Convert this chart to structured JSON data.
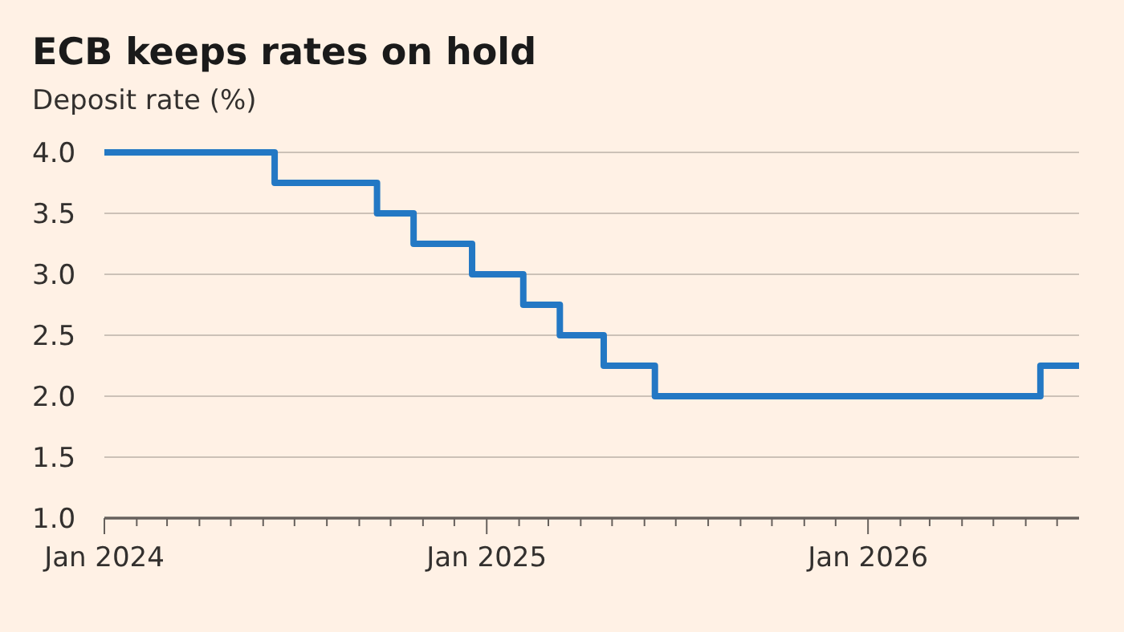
{
  "chart_data": {
    "type": "step",
    "title": "ECB keeps rates on hold",
    "subtitle": "Deposit rate (%)",
    "x": [
      "2024-01-01",
      "2024-06-12",
      "2024-09-18",
      "2024-10-23",
      "2024-12-18",
      "2025-02-05",
      "2025-03-12",
      "2025-04-23",
      "2025-06-11",
      "2026-06-15",
      "2026-07-22"
    ],
    "series": [
      {
        "color": "#2378c4",
        "values": [
          4.0,
          3.75,
          3.5,
          3.25,
          3.0,
          2.75,
          2.5,
          2.25,
          2.0,
          2.25,
          2.25
        ]
      }
    ],
    "xlim": [
      "2024-01-01",
      "2026-07-22"
    ],
    "xticks": [
      {
        "value": "2024-01-01",
        "label": "Jan 2024"
      },
      {
        "value": "2024-02-01",
        "label": null
      },
      {
        "value": "2024-03-01",
        "label": null
      },
      {
        "value": "2024-04-01",
        "label": null
      },
      {
        "value": "2024-05-01",
        "label": null
      },
      {
        "value": "2024-06-01",
        "label": null
      },
      {
        "value": "2024-07-01",
        "label": null
      },
      {
        "value": "2024-08-01",
        "label": null
      },
      {
        "value": "2024-09-01",
        "label": null
      },
      {
        "value": "2024-10-01",
        "label": null
      },
      {
        "value": "2024-11-01",
        "label": null
      },
      {
        "value": "2024-12-01",
        "label": null
      },
      {
        "value": "2025-01-01",
        "label": "Jan 2025"
      },
      {
        "value": "2025-02-01",
        "label": null
      },
      {
        "value": "2025-03-01",
        "label": null
      },
      {
        "value": "2025-04-01",
        "label": null
      },
      {
        "value": "2025-05-01",
        "label": null
      },
      {
        "value": "2025-06-01",
        "label": null
      },
      {
        "value": "2025-07-01",
        "label": null
      },
      {
        "value": "2025-08-01",
        "label": null
      },
      {
        "value": "2025-09-01",
        "label": null
      },
      {
        "value": "2025-10-01",
        "label": null
      },
      {
        "value": "2025-11-01",
        "label": null
      },
      {
        "value": "2025-12-01",
        "label": null
      },
      {
        "value": "2026-01-01",
        "label": "Jan 2026"
      },
      {
        "value": "2026-02-01",
        "label": null
      },
      {
        "value": "2026-03-01",
        "label": null
      },
      {
        "value": "2026-04-01",
        "label": null
      },
      {
        "value": "2026-05-01",
        "label": null
      },
      {
        "value": "2026-06-01",
        "label": null
      },
      {
        "value": "2026-07-01",
        "label": null
      }
    ],
    "ylim": [
      1.0,
      4.0
    ],
    "yticks": [
      {
        "value": 1.0,
        "label": "1.0"
      },
      {
        "value": 1.5,
        "label": "1.5"
      },
      {
        "value": 2.0,
        "label": "2.0"
      },
      {
        "value": 2.5,
        "label": "2.5"
      },
      {
        "value": 3.0,
        "label": "3.0"
      },
      {
        "value": 3.5,
        "label": "3.5"
      },
      {
        "value": 4.0,
        "label": "4.0"
      }
    ],
    "grid": "y",
    "line_style": "solid",
    "marker": "none"
  }
}
